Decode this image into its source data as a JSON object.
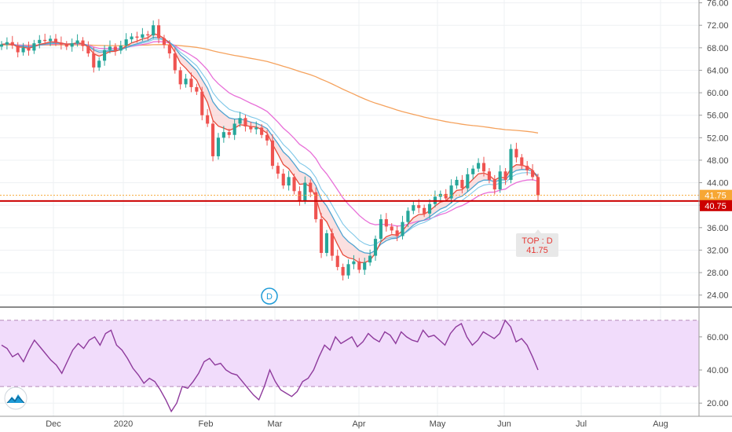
{
  "chart_data": [
    {
      "type": "candlestick",
      "x_ticks": [
        "Dec",
        "2020",
        "Feb",
        "Mar",
        "Apr",
        "May",
        "Jun",
        "Jul",
        "Aug"
      ],
      "y_ticks": [
        "24.00",
        "28.00",
        "32.00",
        "36.00",
        "40.00",
        "44.00",
        "48.00",
        "52.00",
        "56.00",
        "60.00",
        "64.00",
        "68.00",
        "72.00",
        "76.00"
      ],
      "ylim": [
        22.0,
        76.5
      ],
      "price_tag": "41.75",
      "level_tag": "40.75",
      "level_value": 40.75,
      "callout": {
        "line1": "TOP : D",
        "line2": "41.75"
      },
      "event_marker": "D",
      "colors": {
        "up": "#26a69a",
        "down": "#ef5350",
        "level": "#cc0000",
        "price_tag": "#f7a734",
        "sma200": "#f5a25d",
        "sma50": "#e86fd8",
        "ema_fast": "#e74c3c",
        "ema_slow": "#4fa3d1",
        "rsi_line": "#8e3a9c",
        "rsi_band": "#f1dcfb"
      },
      "candles_close": [
        68.6,
        69.0,
        68.4,
        67.2,
        68.0,
        67.5,
        68.8,
        69.4,
        69.2,
        69.6,
        68.9,
        68.6,
        68.2,
        68.8,
        69.3,
        68.3,
        67.0,
        64.5,
        65.7,
        67.6,
        68.2,
        67.5,
        68.4,
        69.5,
        70.0,
        69.8,
        70.4,
        70.2,
        72.0,
        69.7,
        68.5,
        67.0,
        64.0,
        61.5,
        62.5,
        61.0,
        60.2,
        56.0,
        54.5,
        48.7,
        52.0,
        53.0,
        52.5,
        54.5,
        55.5,
        54.0,
        53.5,
        53.8,
        52.5,
        51.5,
        47.0,
        45.6,
        43.5,
        45.0,
        42.5,
        40.8,
        44.0,
        42.3,
        37.5,
        31.5,
        35.0,
        31.0,
        29.0,
        27.5,
        29.5,
        30.0,
        28.5,
        29.8,
        31.0,
        34.0,
        37.5,
        36.2,
        35.5,
        34.5,
        37.0,
        39.0,
        40.0,
        39.5,
        38.5,
        40.2,
        41.5,
        42.0,
        41.2,
        43.5,
        44.5,
        43.0,
        45.5,
        46.5,
        47.5,
        46.0,
        44.5,
        42.8,
        46.0,
        44.5,
        50.0,
        48.5,
        47.0,
        46.2,
        45.0,
        41.75
      ],
      "rsi": {
        "y_ticks": [
          "20.00",
          "40.00",
          "60.00"
        ],
        "ylim": [
          13,
          77
        ],
        "upper": 70,
        "lower": 30,
        "values": [
          55,
          53,
          48,
          50,
          45,
          52,
          58,
          54,
          50,
          46,
          43,
          38,
          45,
          52,
          56,
          53,
          58,
          60,
          55,
          62,
          64,
          55,
          52,
          47,
          41,
          37,
          32,
          35,
          33,
          28,
          22,
          15,
          20,
          30,
          29,
          33,
          38,
          45,
          47,
          43,
          44,
          40,
          38,
          37,
          33,
          29,
          25,
          22,
          30,
          40,
          33,
          28,
          26,
          24,
          27,
          33,
          35,
          40,
          48,
          55,
          52,
          60,
          56,
          58,
          60,
          54,
          57,
          62,
          59,
          57,
          63,
          61,
          56,
          63,
          60,
          58,
          57,
          64,
          60,
          61,
          58,
          55,
          62,
          66,
          68,
          60,
          55,
          58,
          63,
          61,
          59,
          62,
          70,
          66,
          57,
          59,
          55,
          48,
          40
        ]
      }
    }
  ]
}
